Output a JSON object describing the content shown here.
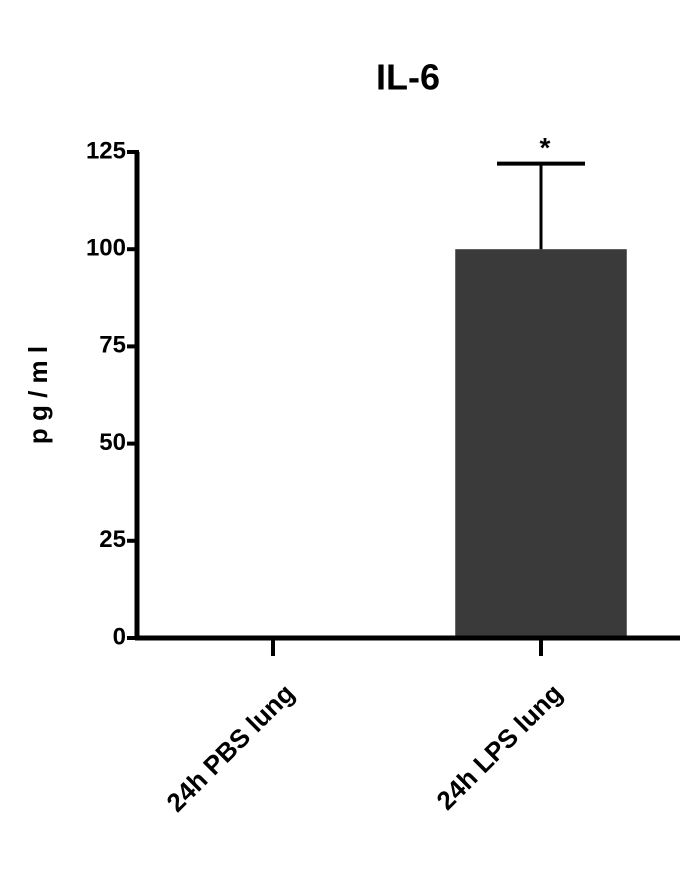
{
  "chart_data": {
    "type": "bar",
    "title": "IL-6",
    "ylabel": "p g / m l",
    "categories": [
      "24h PBS lung",
      "24h LPS lung"
    ],
    "values": [
      0,
      100
    ],
    "errors": [
      0,
      22
    ],
    "color": "#3a3a3a",
    "annotation": "*",
    "ylim": [
      0,
      125
    ],
    "yticks": [
      0,
      25,
      50,
      75,
      100,
      125
    ]
  }
}
